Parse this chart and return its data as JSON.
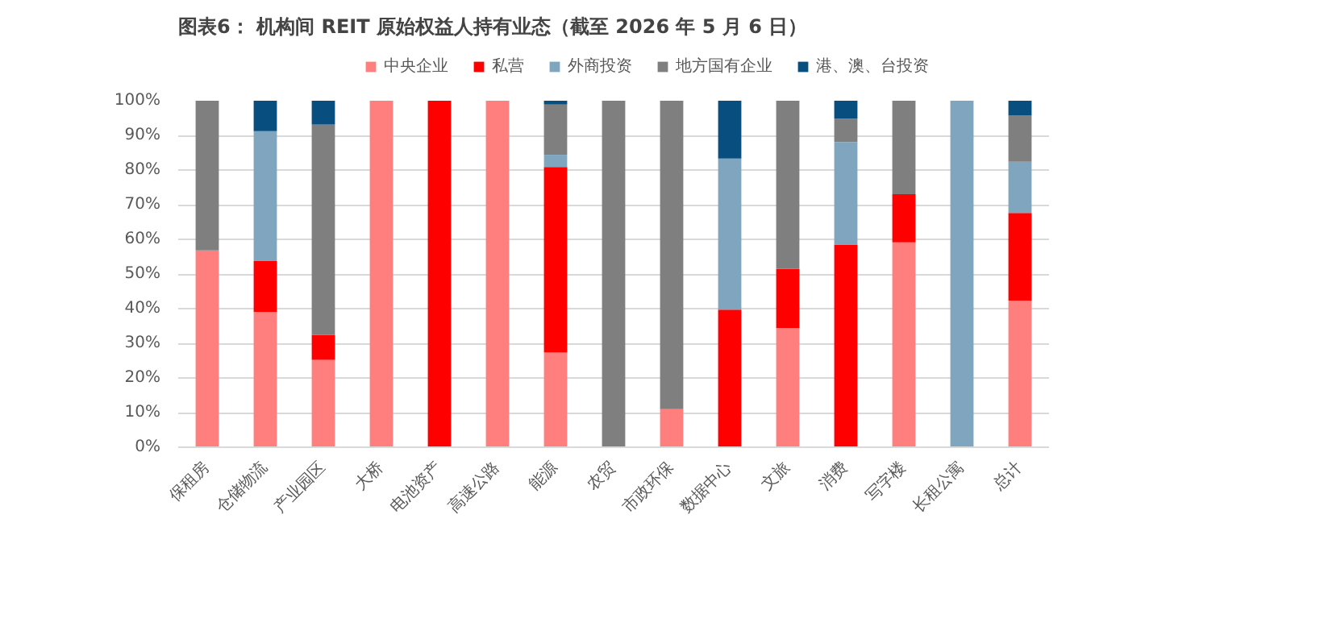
{
  "chart_data": {
    "type": "bar",
    "stacked": true,
    "title": "图表6：  机构间 REIT 原始权益人持有业态（截至 2026 年 5 月 6 日）",
    "categories": [
      "保租房",
      "仓储物流",
      "产业园区",
      "大桥",
      "电池资产",
      "高速公路",
      "能源",
      "农贸",
      "市政环保",
      "数据中心",
      "文旅",
      "消费",
      "写字楼",
      "长租公寓",
      "总计"
    ],
    "series": [
      {
        "name": "中央企业",
        "color": "#ff7f7f",
        "values": [
          56.8,
          39,
          25.2,
          100,
          null,
          100,
          27.3,
          null,
          11,
          null,
          34.4,
          null,
          59.1,
          null,
          42.3
        ]
      },
      {
        "name": "私营",
        "color": "#ff0000",
        "values": [
          null,
          14.7,
          7.2,
          null,
          100,
          null,
          53.6,
          null,
          null,
          39.7,
          17.1,
          58.5,
          13.9,
          null,
          25.3
        ]
      },
      {
        "name": "外商投资",
        "color": "#7fa5bf",
        "values": [
          null,
          37.5,
          null,
          null,
          null,
          null,
          3.5,
          null,
          null,
          43.6,
          null,
          29.6,
          null,
          100,
          14.8
        ]
      },
      {
        "name": "地方国有企业",
        "color": "#7f7f7f",
        "values": [
          43.2,
          null,
          60.7,
          null,
          null,
          null,
          14.5,
          100,
          89,
          null,
          48.5,
          6.7,
          27,
          null,
          13.3
        ]
      },
      {
        "name": "港、澳、台投资",
        "color": "#084f80",
        "values": [
          null,
          8.8,
          6.9,
          null,
          null,
          null,
          1.1,
          null,
          null,
          16.7,
          null,
          5.2,
          null,
          null,
          4.3
        ]
      }
    ],
    "ylim": [
      0,
      100
    ],
    "yticks": [
      {
        "value": 0,
        "label": "0%"
      },
      {
        "value": 10,
        "label": "10%"
      },
      {
        "value": 20,
        "label": "20%"
      },
      {
        "value": 30,
        "label": "30%"
      },
      {
        "value": 40,
        "label": "40%"
      },
      {
        "value": 50,
        "label": "50%"
      },
      {
        "value": 60,
        "label": "60%"
      },
      {
        "value": 70,
        "label": "70%"
      },
      {
        "value": 80,
        "label": "80%"
      },
      {
        "value": 90,
        "label": "90%"
      },
      {
        "value": 100,
        "label": "100%"
      }
    ],
    "grid": "y",
    "legend": "top"
  }
}
